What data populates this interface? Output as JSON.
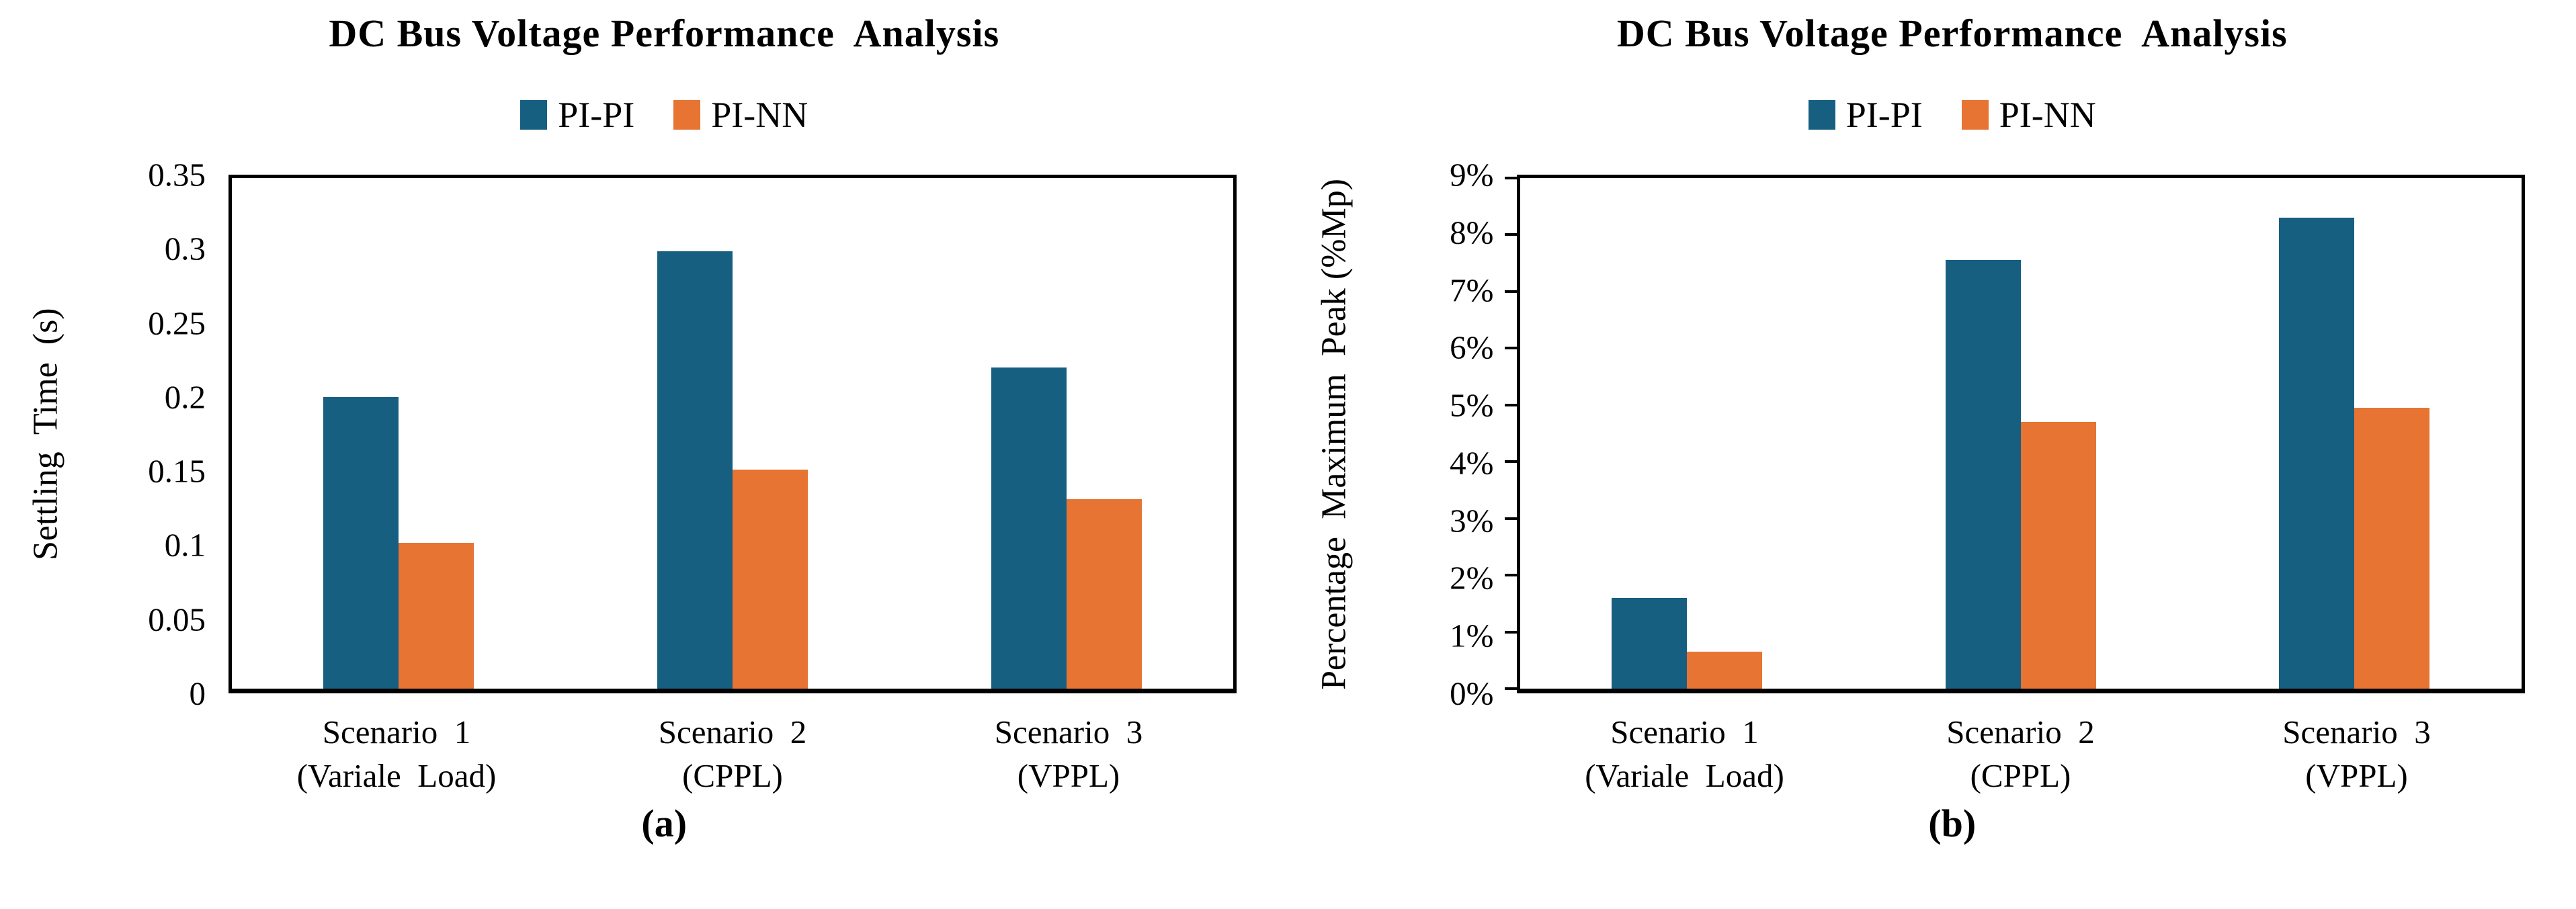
{
  "background": "#FFFFFF",
  "colors": {
    "pi_pi": "#165F80",
    "pi_nn": "#E77433",
    "axis": "#000000"
  },
  "chart_data": [
    {
      "type": "bar",
      "title": "DC Bus Voltage Performance  Analysis",
      "caption": "(a)",
      "ylabel": "Settling  Time  (s)",
      "xlabel": "",
      "ylim": [
        0,
        0.35
      ],
      "grid": false,
      "legend_position": "top",
      "y_tick_marks": false,
      "y_ticks": [
        {
          "value": 0,
          "label": "0"
        },
        {
          "value": 0.05,
          "label": "0.05"
        },
        {
          "value": 0.1,
          "label": "0.1"
        },
        {
          "value": 0.15,
          "label": "0.15"
        },
        {
          "value": 0.2,
          "label": "0.2"
        },
        {
          "value": 0.25,
          "label": "0.25"
        },
        {
          "value": 0.3,
          "label": "0.3"
        },
        {
          "value": 0.35,
          "label": "0.35"
        }
      ],
      "categories": [
        [
          "Scenario  1",
          "(Variale  Load)"
        ],
        [
          "Scenario  2",
          "(CPPL)"
        ],
        [
          "Scenario  3",
          "(VPPL)"
        ]
      ],
      "series": [
        {
          "name": "PI-PI",
          "color": "#165F80",
          "values": [
            0.2,
            0.3,
            0.22
          ]
        },
        {
          "name": "PI-NN",
          "color": "#E77433",
          "values": [
            0.1,
            0.15,
            0.13
          ]
        }
      ]
    },
    {
      "type": "bar",
      "title": "DC Bus Voltage Performance  Analysis",
      "caption": "(b)",
      "ylabel": "Percentage  Maximum  Peak (%Mp)",
      "xlabel": "",
      "ylim": [
        0,
        9
      ],
      "grid": false,
      "legend_position": "top",
      "y_tick_marks": true,
      "y_ticks": [
        {
          "value": 0,
          "label": "0%"
        },
        {
          "value": 1,
          "label": "1%"
        },
        {
          "value": 2,
          "label": "2%"
        },
        {
          "value": 3,
          "label": "3%"
        },
        {
          "value": 4,
          "label": "4%"
        },
        {
          "value": 5,
          "label": "5%"
        },
        {
          "value": 6,
          "label": "6%"
        },
        {
          "value": 7,
          "label": "7%"
        },
        {
          "value": 8,
          "label": "8%"
        },
        {
          "value": 9,
          "label": "9%"
        }
      ],
      "categories": [
        [
          "Scenario  1",
          "(Variale  Load)"
        ],
        [
          "Scenario  2",
          "(CPPL)"
        ],
        [
          "Scenario  3",
          "(VPPL)"
        ]
      ],
      "series": [
        {
          "name": "PI-PI",
          "color": "#165F80",
          "values": [
            1.6,
            7.55,
            8.3
          ]
        },
        {
          "name": "PI-NN",
          "color": "#E77433",
          "values": [
            0.65,
            4.7,
            4.95
          ]
        }
      ]
    }
  ]
}
